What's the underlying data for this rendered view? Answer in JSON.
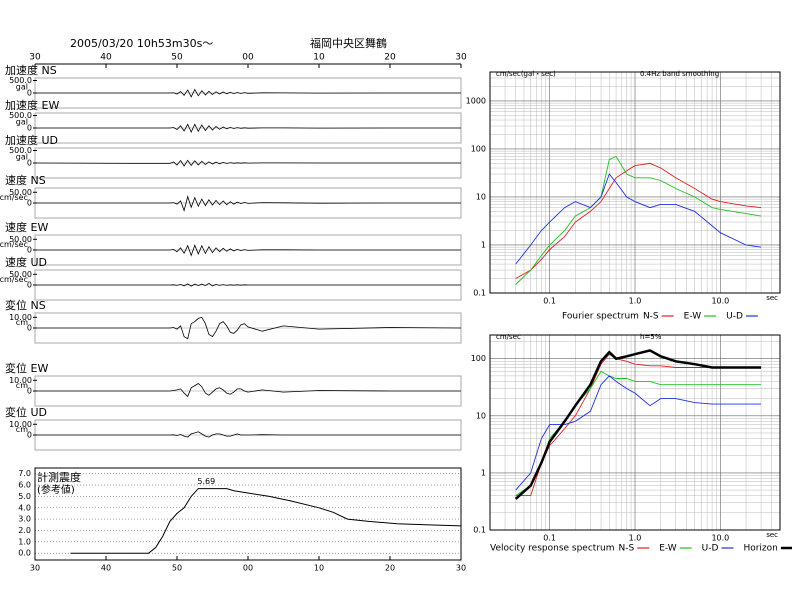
{
  "chart_data": [
    {
      "type": "waveform",
      "title": "2005/03/20 10h53m30s〜",
      "subtitle": "福岡中央区舞鶴",
      "xlim": [
        0,
        60
      ],
      "xticks": [
        {
          "value": 0,
          "label": "30"
        },
        {
          "value": 10,
          "label": "40"
        },
        {
          "value": 20,
          "label": "50"
        },
        {
          "value": 30,
          "label": "00"
        },
        {
          "value": 40,
          "label": "10"
        },
        {
          "value": 50,
          "label": "20"
        },
        {
          "value": 60,
          "label": "30"
        }
      ],
      "x": [
        0,
        19,
        19.5,
        20,
        20.5,
        21,
        21.5,
        22,
        22.5,
        23,
        23.5,
        24,
        24.5,
        25,
        25.5,
        26,
        26.5,
        27,
        27.5,
        28,
        28.5,
        29,
        29.5,
        30,
        32,
        35,
        40,
        50,
        60
      ],
      "series": [
        {
          "name": "加速度 NS",
          "unit": "gal",
          "color": "#000",
          "ylim": [
            -600,
            600
          ],
          "yticks": [
            {
              "value": 500,
              "label": "500.0"
            },
            0
          ],
          "values": [
            0,
            0,
            10,
            -40,
            60,
            -90,
            120,
            -150,
            140,
            -110,
            90,
            -80,
            70,
            -60,
            50,
            -40,
            40,
            -30,
            30,
            -25,
            20,
            -20,
            15,
            -10,
            8,
            5,
            -3,
            0,
            0
          ]
        },
        {
          "name": "加速度 EW",
          "unit": "gal",
          "color": "#000",
          "ylim": [
            -600,
            600
          ],
          "yticks": [
            {
              "value": 500,
              "label": "500.0"
            },
            0
          ],
          "values": [
            0,
            0,
            20,
            -60,
            90,
            -120,
            150,
            -160,
            150,
            -130,
            120,
            -100,
            90,
            -80,
            60,
            -50,
            40,
            -30,
            25,
            -20,
            15,
            -12,
            10,
            -8,
            5,
            3,
            -2,
            0,
            0
          ]
        },
        {
          "name": "加速度 UD",
          "unit": "gal",
          "color": "#000",
          "ylim": [
            -600,
            600
          ],
          "yticks": [
            {
              "value": 500,
              "label": "500.0"
            },
            0
          ],
          "values": [
            0,
            -20,
            40,
            -80,
            100,
            -120,
            110,
            -100,
            90,
            -80,
            70,
            -60,
            50,
            -40,
            35,
            -30,
            25,
            -20,
            15,
            -12,
            10,
            -8,
            6,
            -5,
            3,
            2,
            -1,
            0,
            0
          ]
        },
        {
          "name": "速度 NS",
          "unit": "cm/sec",
          "color": "#000",
          "ylim": [
            -70,
            70
          ],
          "yticks": [
            {
              "value": 50,
              "label": "50.00"
            },
            0
          ],
          "values": [
            0,
            0,
            2,
            -5,
            10,
            -35,
            30,
            -20,
            25,
            -15,
            18,
            -12,
            15,
            -10,
            12,
            -8,
            10,
            -8,
            6,
            -5,
            4,
            -3,
            3,
            -2,
            2,
            1,
            -1,
            0,
            0
          ]
        },
        {
          "name": "速度 EW",
          "unit": "cm/sec",
          "color": "#000",
          "ylim": [
            -70,
            70
          ],
          "yticks": [
            {
              "value": 50,
              "label": "50.00"
            },
            0
          ],
          "values": [
            0,
            0,
            3,
            -8,
            10,
            -15,
            20,
            -25,
            22,
            -18,
            20,
            -16,
            15,
            -12,
            10,
            -8,
            8,
            -6,
            5,
            -4,
            3,
            -3,
            2,
            -2,
            1,
            1,
            0,
            0,
            0
          ]
        },
        {
          "name": "速度 UD",
          "unit": "cm/sec",
          "color": "#000",
          "ylim": [
            -70,
            70
          ],
          "yticks": [
            {
              "value": 50,
              "label": "50.00"
            },
            0
          ],
          "values": [
            0,
            0,
            1,
            -2,
            3,
            -4,
            5,
            -5,
            4,
            -3,
            4,
            -3,
            8,
            -4,
            3,
            -2,
            2,
            -2,
            1,
            -1,
            1,
            -1,
            1,
            0,
            0,
            0,
            0,
            0,
            0
          ]
        },
        {
          "name": "変位 NS",
          "unit": "cm",
          "color": "#000",
          "ylim": [
            -14,
            14
          ],
          "yticks": [
            {
              "value": 10,
              "label": "10.00"
            },
            0
          ],
          "values": [
            0,
            0,
            0.5,
            -1,
            2,
            -8,
            -10,
            4,
            6,
            9,
            10,
            4,
            -6,
            -8,
            -3,
            4,
            6,
            2,
            -4,
            -5,
            -2,
            3,
            4,
            1,
            -3,
            2,
            -1,
            0.5,
            0
          ]
        },
        {
          "name": "変位 EW",
          "unit": "cm",
          "color": "#000",
          "ylim": [
            -14,
            14
          ],
          "yticks": [
            {
              "value": 10,
              "label": "10.00"
            },
            0
          ],
          "values": [
            0,
            0,
            0.5,
            1,
            2,
            -2,
            -5,
            3,
            5,
            7,
            4,
            -2,
            -4,
            -1,
            2,
            3,
            1,
            -2,
            -3,
            -1,
            2,
            2,
            0,
            -1,
            1,
            -1,
            0.5,
            0,
            0
          ]
        },
        {
          "name": "変位 UD",
          "unit": "cm",
          "color": "#000",
          "ylim": [
            -14,
            14
          ],
          "yticks": [
            {
              "value": 10,
              "label": "10.00"
            },
            0
          ],
          "values": [
            0,
            0,
            0.2,
            -0.5,
            0.5,
            -1,
            -2,
            1,
            2,
            3,
            1,
            -1,
            -2,
            0,
            1,
            1,
            0,
            -1,
            -1,
            0,
            1,
            0,
            0,
            0,
            0.3,
            0,
            0,
            0,
            0
          ]
        }
      ]
    },
    {
      "type": "line",
      "title": "計測震度",
      "subtitle": "(参考値)",
      "color": "#000",
      "grid": true,
      "peak": 5.69,
      "xlim": [
        0,
        60
      ],
      "xticks": [
        {
          "value": 0,
          "label": "30"
        },
        {
          "value": 10,
          "label": "40"
        },
        {
          "value": 20,
          "label": "50"
        },
        {
          "value": 30,
          "label": "00"
        },
        {
          "value": 40,
          "label": "10"
        },
        {
          "value": 50,
          "label": "20"
        },
        {
          "value": 60,
          "label": "30"
        }
      ],
      "ylim": [
        -0.6,
        7.5
      ],
      "yticks": [
        {
          "value": 0,
          "label": "0.0"
        },
        {
          "value": 1,
          "label": "1.0"
        },
        {
          "value": 2,
          "label": "2.0"
        },
        {
          "value": 3,
          "label": "3.0"
        },
        {
          "value": 4,
          "label": "4.0"
        },
        {
          "value": 5,
          "label": "5.0"
        },
        {
          "value": 6,
          "label": "6.0"
        },
        {
          "value": 7,
          "label": "7.0"
        }
      ],
      "x": [
        5,
        16,
        17,
        18,
        19,
        20,
        21,
        22,
        23,
        27,
        28,
        30,
        33,
        36,
        40,
        42,
        44,
        47,
        51,
        55,
        60
      ],
      "values": [
        0,
        0,
        0.5,
        1.5,
        2.8,
        3.5,
        4.0,
        5.0,
        5.69,
        5.69,
        5.5,
        5.3,
        5.0,
        4.6,
        4.0,
        3.6,
        3.0,
        2.8,
        2.6,
        2.5,
        2.4
      ]
    },
    {
      "type": "line",
      "title": "Fourier spectrum",
      "y_label": "cm/sec(gal・sec)",
      "subtitle": "0.4Hz band smoothing",
      "x_label": "sec",
      "xlog": true,
      "ylog": true,
      "grid": true,
      "xlim": [
        0.02,
        50
      ],
      "xticks": [
        0.1,
        {
          "value": 1,
          "label": "1.0"
        },
        {
          "value": 10,
          "label": "10.0"
        }
      ],
      "ylim": [
        0.1,
        4000
      ],
      "yticks": [
        0.1,
        1,
        10,
        100,
        1000
      ],
      "x": [
        0.04,
        0.06,
        0.08,
        0.1,
        0.15,
        0.2,
        0.3,
        0.4,
        0.5,
        0.6,
        0.8,
        1,
        1.5,
        2,
        3,
        5,
        8,
        10,
        20,
        30
      ],
      "series": [
        {
          "name": "N-S",
          "color": "#e02020",
          "values": [
            0.2,
            0.3,
            0.5,
            0.8,
            1.5,
            3,
            5,
            8,
            15,
            25,
            35,
            45,
            50,
            40,
            25,
            15,
            9,
            8,
            6.5,
            6
          ]
        },
        {
          "name": "E-W",
          "color": "#20c020",
          "values": [
            0.15,
            0.3,
            0.6,
            1,
            2,
            4,
            6,
            10,
            60,
            70,
            30,
            25,
            25,
            22,
            15,
            10,
            6,
            5.5,
            4.5,
            4
          ]
        },
        {
          "name": "U-D",
          "color": "#2030e0",
          "values": [
            0.4,
            1,
            2,
            3,
            6,
            8,
            6,
            10,
            30,
            20,
            10,
            8,
            6,
            7,
            7,
            5,
            2.5,
            1.8,
            1,
            0.9
          ]
        }
      ]
    },
    {
      "type": "line",
      "title": "Velocity response spectrum",
      "y_label": "cm/sec",
      "subtitle": "h=5%",
      "x_label": "sec",
      "xlog": true,
      "ylog": true,
      "grid": true,
      "xlim": [
        0.02,
        50
      ],
      "xticks": [
        0.1,
        {
          "value": 1,
          "label": "1.0"
        },
        {
          "value": 10,
          "label": "10.0"
        }
      ],
      "ylim": [
        0.1,
        260
      ],
      "yticks": [
        0.1,
        1,
        10,
        100
      ],
      "x": [
        0.04,
        0.06,
        0.08,
        0.1,
        0.15,
        0.2,
        0.3,
        0.4,
        0.5,
        0.6,
        0.8,
        1,
        1.5,
        2,
        3,
        5,
        8,
        10,
        20,
        30
      ],
      "series": [
        {
          "name": "N-S",
          "color": "#e02020",
          "values": [
            0.4,
            0.4,
            1.5,
            3,
            6,
            10,
            30,
            80,
            120,
            100,
            90,
            80,
            75,
            75,
            70,
            70,
            70,
            70,
            70,
            70
          ]
        },
        {
          "name": "E-W",
          "color": "#20c020",
          "values": [
            0.4,
            0.6,
            1.5,
            4,
            8,
            15,
            30,
            60,
            50,
            45,
            45,
            40,
            40,
            35,
            35,
            35,
            35,
            35,
            35,
            35
          ]
        },
        {
          "name": "U-D",
          "color": "#2030e0",
          "values": [
            0.5,
            1,
            4,
            7,
            7,
            8,
            12,
            35,
            50,
            40,
            30,
            25,
            15,
            20,
            20,
            17,
            16,
            16,
            16,
            16
          ]
        },
        {
          "name": "Horizon",
          "color": "#000",
          "linewidth": 2.5,
          "values": [
            0.35,
            0.6,
            1.5,
            3.5,
            8,
            15,
            35,
            90,
            130,
            100,
            110,
            120,
            140,
            110,
            90,
            80,
            70,
            70,
            70,
            70
          ]
        }
      ]
    }
  ]
}
